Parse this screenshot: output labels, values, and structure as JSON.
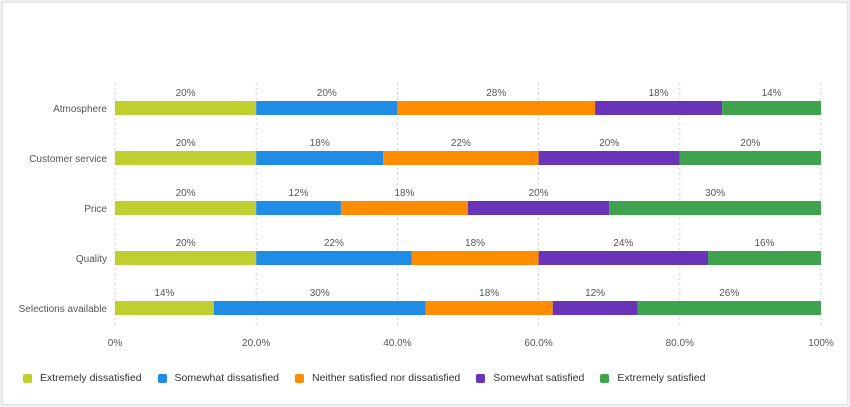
{
  "chart_data": {
    "type": "bar",
    "orientation": "horizontal",
    "stacked": true,
    "categories": [
      "Atmosphere",
      "Customer service",
      "Price",
      "Quality",
      "Selections available"
    ],
    "series": [
      {
        "name": "Extremely dissatisfied",
        "color": "#bfcf2f",
        "values": [
          20,
          20,
          20,
          20,
          14
        ]
      },
      {
        "name": "Somewhat dissatisfied",
        "color": "#1f8ce6",
        "values": [
          20,
          18,
          12,
          22,
          30
        ]
      },
      {
        "name": "Neither satisfied nor dissatisfied",
        "color": "#ff8c00",
        "values": [
          28,
          22,
          18,
          18,
          18
        ]
      },
      {
        "name": "Somewhat satisfied",
        "color": "#6a34b8",
        "values": [
          18,
          20,
          20,
          24,
          12
        ]
      },
      {
        "name": "Extremely satisfied",
        "color": "#3fa34d",
        "values": [
          14,
          20,
          30,
          16,
          26
        ]
      }
    ],
    "xlim": [
      0,
      100
    ],
    "xticks": [
      "0%",
      "20.0%",
      "40.0%",
      "60.0%",
      "80.0%",
      "100%"
    ],
    "grid": true,
    "legend": "bottom"
  }
}
